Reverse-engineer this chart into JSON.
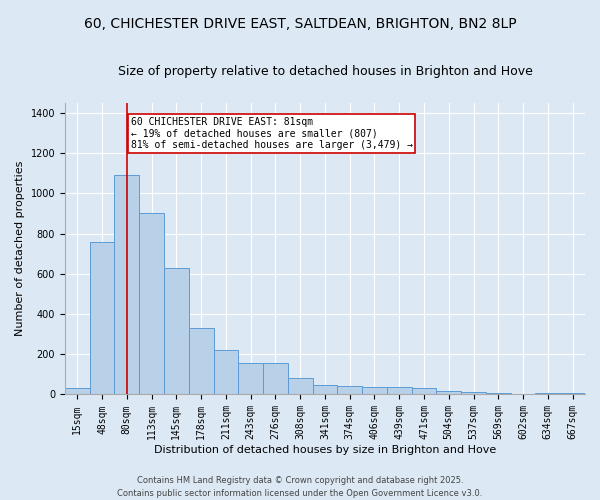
{
  "title_line1": "60, CHICHESTER DRIVE EAST, SALTDEAN, BRIGHTON, BN2 8LP",
  "title_line2": "Size of property relative to detached houses in Brighton and Hove",
  "xlabel": "Distribution of detached houses by size in Brighton and Hove",
  "ylabel": "Number of detached properties",
  "categories": [
    "15sqm",
    "48sqm",
    "80sqm",
    "113sqm",
    "145sqm",
    "178sqm",
    "211sqm",
    "243sqm",
    "276sqm",
    "308sqm",
    "341sqm",
    "374sqm",
    "406sqm",
    "439sqm",
    "471sqm",
    "504sqm",
    "537sqm",
    "569sqm",
    "602sqm",
    "634sqm",
    "667sqm"
  ],
  "values": [
    30,
    760,
    1090,
    900,
    630,
    330,
    220,
    155,
    155,
    80,
    45,
    40,
    38,
    35,
    30,
    18,
    12,
    8,
    0,
    5,
    8
  ],
  "bar_color": "#b8d0e8",
  "bar_edge_color": "#5b9bd5",
  "vline_x": 2,
  "vline_color": "#cc0000",
  "annotation_text": "60 CHICHESTER DRIVE EAST: 81sqm\n← 19% of detached houses are smaller (807)\n81% of semi-detached houses are larger (3,479) →",
  "annotation_box_color": "#cc0000",
  "annotation_text_color": "#000000",
  "ylim": [
    0,
    1450
  ],
  "background_color": "#dce9f5",
  "plot_bg_color": "#dce9f5",
  "footer": "Contains HM Land Registry data © Crown copyright and database right 2025.\nContains public sector information licensed under the Open Government Licence v3.0.",
  "title_fontsize": 10,
  "subtitle_fontsize": 9,
  "label_fontsize": 8,
  "tick_fontsize": 7,
  "footer_fontsize": 6,
  "annotation_fontsize": 7
}
